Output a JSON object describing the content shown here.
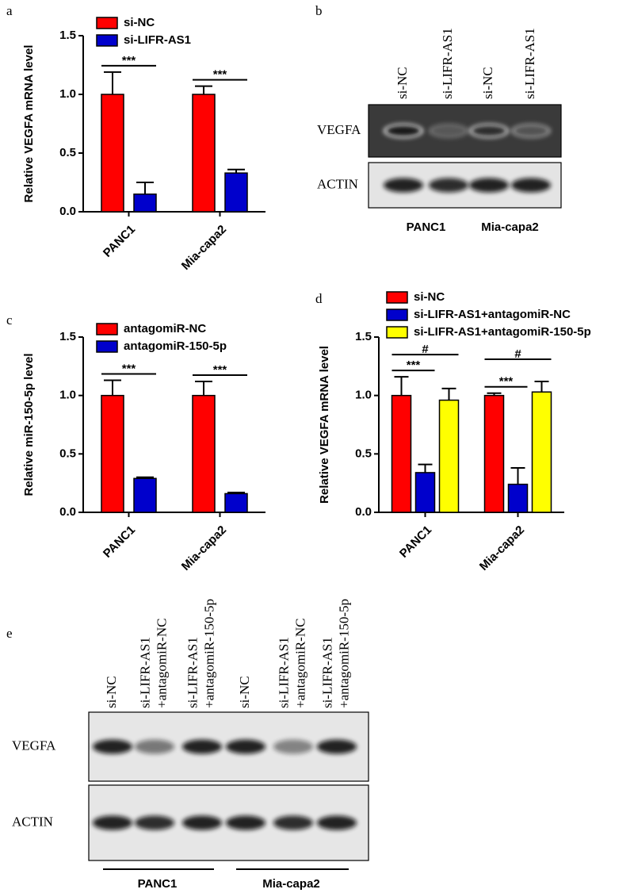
{
  "chart_data": [
    {
      "type": "bar",
      "panel": "a",
      "y_label": "Relative VEGFA mRNA level",
      "categories": [
        "PANC1",
        "Mia-capa2"
      ],
      "series": [
        {
          "name": "si-NC",
          "color": "#ff0000",
          "values": [
            1.0,
            1.0
          ],
          "errors": [
            0.19,
            0.07
          ]
        },
        {
          "name": "si-LIFR-AS1",
          "color": "#0000cc",
          "values": [
            0.15,
            0.33
          ],
          "errors": [
            0.1,
            0.03
          ]
        }
      ],
      "ylim": [
        0,
        1.5
      ],
      "yticks": [
        {
          "value": 0,
          "label": "0.0"
        },
        0.5,
        {
          "value": 1,
          "label": "1.0"
        },
        1.5
      ],
      "annotations": [
        {
          "text": "***",
          "category": "PANC1",
          "from": "si-NC",
          "to": "si-LIFR-AS1"
        },
        {
          "text": "***",
          "category": "Mia-capa2",
          "from": "si-NC",
          "to": "si-LIFR-AS1"
        }
      ]
    },
    {
      "type": "bar",
      "panel": "c",
      "y_label": "Relative miR-150-5p level",
      "categories": [
        "PANC1",
        "Mia-capa2"
      ],
      "series": [
        {
          "name": "antagomiR-NC",
          "color": "#ff0000",
          "values": [
            1.0,
            1.0
          ],
          "errors": [
            0.13,
            0.12
          ]
        },
        {
          "name": "antagomiR-150-5p",
          "color": "#0000cc",
          "values": [
            0.29,
            0.16
          ],
          "errors": [
            0.01,
            0.01
          ]
        }
      ],
      "ylim": [
        0,
        1.5
      ],
      "yticks": [
        {
          "value": 0,
          "label": "0.0"
        },
        0.5,
        {
          "value": 1,
          "label": "1.0"
        },
        1.5
      ],
      "annotations": [
        {
          "text": "***",
          "category": "PANC1",
          "from": "antagomiR-NC",
          "to": "antagomiR-150-5p"
        },
        {
          "text": "***",
          "category": "Mia-capa2",
          "from": "antagomiR-NC",
          "to": "antagomiR-150-5p"
        }
      ]
    },
    {
      "type": "bar",
      "panel": "d",
      "y_label": "Relative VEGFA mRNA level",
      "categories": [
        "PANC1",
        "Mia-capa2"
      ],
      "series": [
        {
          "name": "si-NC",
          "color": "#ff0000",
          "values": [
            1.0,
            1.0
          ],
          "errors": [
            0.16,
            0.02
          ]
        },
        {
          "name": "si-LIFR-AS1+antagomiR-NC",
          "color": "#0000cc",
          "values": [
            0.34,
            0.24
          ],
          "errors": [
            0.07,
            0.14
          ]
        },
        {
          "name": "si-LIFR-AS1+antagomiR-150-5p",
          "color": "#ffff00",
          "values": [
            0.96,
            1.03
          ],
          "errors": [
            0.1,
            0.09
          ]
        }
      ],
      "ylim": [
        0,
        1.5
      ],
      "yticks": [
        {
          "value": 0,
          "label": "0.0"
        },
        0.5,
        {
          "value": 1,
          "label": "1.0"
        },
        1.5
      ],
      "annotations": [
        {
          "text": "***",
          "category": "PANC1",
          "from": "si-NC",
          "to": "si-LIFR-AS1+antagomiR-NC"
        },
        {
          "text": "#",
          "category": "PANC1",
          "from": "si-NC",
          "to": "si-LIFR-AS1+antagomiR-150-5p"
        },
        {
          "text": "***",
          "category": "Mia-capa2",
          "from": "si-NC",
          "to": "si-LIFR-AS1+antagomiR-NC"
        },
        {
          "text": "#",
          "category": "Mia-capa2",
          "from": "si-NC",
          "to": "si-LIFR-AS1+antagomiR-150-5p"
        }
      ]
    }
  ],
  "blots": [
    {
      "panel": "b",
      "lanes": [
        [
          "si-NC"
        ],
        [
          "si-LIFR-AS1"
        ],
        [
          "si-NC"
        ],
        [
          "si-LIFR-AS1"
        ]
      ],
      "rows": [
        "VEGFA",
        "ACTIN"
      ],
      "groups": [
        "PANC1",
        "Mia-capa2"
      ]
    },
    {
      "panel": "e",
      "lanes": [
        [
          "si-NC"
        ],
        [
          "si-LIFR-AS1",
          "+antagomiR-NC"
        ],
        [
          "si-LIFR-AS1",
          "+antagomiR-150-5p"
        ],
        [
          "si-NC"
        ],
        [
          "si-LIFR-AS1",
          "+antagomiR-NC"
        ],
        [
          "si-LIFR-AS1",
          "+antagomiR-150-5p"
        ]
      ],
      "rows": [
        "VEGFA",
        "ACTIN"
      ],
      "groups": [
        "PANC1",
        "Mia-capa2"
      ]
    }
  ]
}
